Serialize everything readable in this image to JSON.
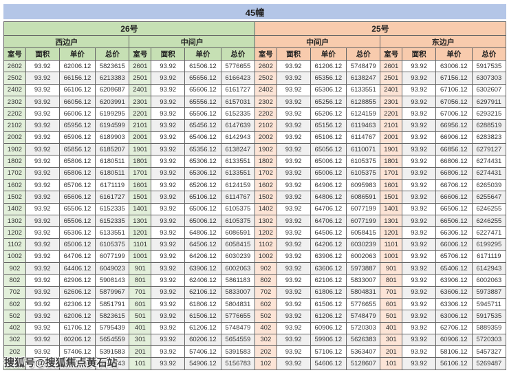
{
  "title": "45幢",
  "watermark": {
    "text": "搜狐号@搜狐焦点黄石站"
  },
  "colors": {
    "title_bar": "#b4c6e7",
    "group_26_header": "#c6e0b4",
    "group_25_header": "#f8cbad",
    "room_col_26": "#e2efda",
    "room_col_25": "#fce4d6",
    "alt_row": "#f0f0f0",
    "border": "#656565"
  },
  "table": {
    "groups": [
      {
        "label": "26号",
        "sections": [
          "西边户",
          "中间户"
        ]
      },
      {
        "label": "25号",
        "sections": [
          "中间户",
          "东边户"
        ]
      }
    ],
    "col_headers": [
      "室号",
      "面积",
      "单价",
      "总价"
    ],
    "rows": [
      [
        [
          "2602",
          "93.92",
          "62006.12",
          "5823615"
        ],
        [
          "2601",
          "93.92",
          "61506.12",
          "5776655"
        ],
        [
          "2602",
          "93.92",
          "61206.12",
          "5748479"
        ],
        [
          "2601",
          "93.92",
          "63006.12",
          "5917535"
        ]
      ],
      [
        [
          "2502",
          "93.92",
          "66156.12",
          "6213383"
        ],
        [
          "2501",
          "93.92",
          "65656.12",
          "6166423"
        ],
        [
          "2502",
          "93.92",
          "65356.12",
          "6138247"
        ],
        [
          "2501",
          "93.92",
          "67156.12",
          "6307303"
        ]
      ],
      [
        [
          "2402",
          "93.92",
          "66106.12",
          "6208687"
        ],
        [
          "2401",
          "93.92",
          "65606.12",
          "6161727"
        ],
        [
          "2402",
          "93.92",
          "65306.12",
          "6133551"
        ],
        [
          "2401",
          "93.92",
          "67106.12",
          "6302607"
        ]
      ],
      [
        [
          "2302",
          "93.92",
          "66056.12",
          "6203991"
        ],
        [
          "2301",
          "93.92",
          "65556.12",
          "6157031"
        ],
        [
          "2302",
          "93.92",
          "65256.12",
          "6128855"
        ],
        [
          "2301",
          "93.92",
          "67056.12",
          "6297911"
        ]
      ],
      [
        [
          "2202",
          "93.92",
          "66006.12",
          "6199295"
        ],
        [
          "2201",
          "93.92",
          "65506.12",
          "6152335"
        ],
        [
          "2202",
          "93.92",
          "65206.12",
          "6124159"
        ],
        [
          "2201",
          "93.92",
          "67006.12",
          "6293215"
        ]
      ],
      [
        [
          "2102",
          "93.92",
          "65956.12",
          "6194599"
        ],
        [
          "2101",
          "93.92",
          "65456.12",
          "6147639"
        ],
        [
          "2102",
          "93.92",
          "65156.12",
          "6119463"
        ],
        [
          "2101",
          "93.92",
          "66956.12",
          "6288519"
        ]
      ],
      [
        [
          "2002",
          "93.92",
          "65906.12",
          "6189903"
        ],
        [
          "2001",
          "93.92",
          "65406.12",
          "6142943"
        ],
        [
          "2002",
          "93.92",
          "65106.12",
          "6114767"
        ],
        [
          "2001",
          "93.92",
          "66906.12",
          "6283823"
        ]
      ],
      [
        [
          "1902",
          "93.92",
          "65856.12",
          "6185207"
        ],
        [
          "1901",
          "93.92",
          "65356.12",
          "6138247"
        ],
        [
          "1902",
          "93.92",
          "65056.12",
          "6110071"
        ],
        [
          "1901",
          "93.92",
          "66856.12",
          "6279127"
        ]
      ],
      [
        [
          "1802",
          "93.92",
          "65806.12",
          "6180511"
        ],
        [
          "1801",
          "93.92",
          "65306.12",
          "6133551"
        ],
        [
          "1802",
          "93.92",
          "65006.12",
          "6105375"
        ],
        [
          "1801",
          "93.92",
          "66806.12",
          "6274431"
        ]
      ],
      [
        [
          "1702",
          "93.92",
          "65806.12",
          "6180511"
        ],
        [
          "1701",
          "93.92",
          "65306.12",
          "6133551"
        ],
        [
          "1702",
          "93.92",
          "65006.12",
          "6105375"
        ],
        [
          "1701",
          "93.92",
          "66806.12",
          "6274431"
        ]
      ],
      [
        [
          "1602",
          "93.92",
          "65706.12",
          "6171119"
        ],
        [
          "1601",
          "93.92",
          "65206.12",
          "6124159"
        ],
        [
          "1602",
          "93.92",
          "64906.12",
          "6095983"
        ],
        [
          "1601",
          "93.92",
          "66706.12",
          "6265039"
        ]
      ],
      [
        [
          "1502",
          "93.92",
          "65606.12",
          "6161727"
        ],
        [
          "1501",
          "93.92",
          "65106.12",
          "6114767"
        ],
        [
          "1502",
          "93.92",
          "64806.12",
          "6086591"
        ],
        [
          "1501",
          "93.92",
          "66606.12",
          "6255647"
        ]
      ],
      [
        [
          "1402",
          "93.92",
          "65506.12",
          "6152335"
        ],
        [
          "1401",
          "93.92",
          "65006.12",
          "6105375"
        ],
        [
          "1402",
          "93.92",
          "64706.12",
          "6077199"
        ],
        [
          "1401",
          "93.92",
          "66506.12",
          "6246255"
        ]
      ],
      [
        [
          "1302",
          "93.92",
          "65506.12",
          "6152335"
        ],
        [
          "1301",
          "93.92",
          "65006.12",
          "6105375"
        ],
        [
          "1302",
          "93.92",
          "64706.12",
          "6077199"
        ],
        [
          "1301",
          "93.92",
          "66506.12",
          "6246255"
        ]
      ],
      [
        [
          "1202",
          "93.92",
          "65306.12",
          "6133551"
        ],
        [
          "1201",
          "93.92",
          "64806.12",
          "6086591"
        ],
        [
          "1202",
          "93.92",
          "64506.12",
          "6058415"
        ],
        [
          "1201",
          "93.92",
          "66306.12",
          "6227471"
        ]
      ],
      [
        [
          "1102",
          "93.92",
          "65006.12",
          "6105375"
        ],
        [
          "1101",
          "93.92",
          "64506.12",
          "6058415"
        ],
        [
          "1102",
          "93.92",
          "64206.12",
          "6030239"
        ],
        [
          "1101",
          "93.92",
          "66006.12",
          "6199295"
        ]
      ],
      [
        [
          "1002",
          "93.92",
          "64706.12",
          "6077199"
        ],
        [
          "1001",
          "93.92",
          "64206.12",
          "6030239"
        ],
        [
          "1002",
          "93.92",
          "63906.12",
          "6002063"
        ],
        [
          "1001",
          "93.92",
          "65706.12",
          "6171119"
        ]
      ],
      [
        [
          "902",
          "93.92",
          "64406.12",
          "6049023"
        ],
        [
          "901",
          "93.92",
          "63906.12",
          "6002063"
        ],
        [
          "902",
          "93.92",
          "63606.12",
          "5973887"
        ],
        [
          "901",
          "93.92",
          "65406.12",
          "6142943"
        ]
      ],
      [
        [
          "802",
          "93.92",
          "62906.12",
          "5908143"
        ],
        [
          "801",
          "93.92",
          "62406.12",
          "5861183"
        ],
        [
          "802",
          "93.92",
          "62106.12",
          "5833007"
        ],
        [
          "801",
          "93.92",
          "63906.12",
          "6002063"
        ]
      ],
      [
        [
          "702",
          "93.92",
          "62606.12",
          "5879967"
        ],
        [
          "701",
          "93.92",
          "62106.12",
          "5833007"
        ],
        [
          "702",
          "93.92",
          "61806.12",
          "5804831"
        ],
        [
          "701",
          "93.92",
          "63606.12",
          "5973887"
        ]
      ],
      [
        [
          "602",
          "93.92",
          "62306.12",
          "5851791"
        ],
        [
          "601",
          "93.92",
          "61806.12",
          "5804831"
        ],
        [
          "602",
          "93.92",
          "61506.12",
          "5776655"
        ],
        [
          "601",
          "93.92",
          "63306.12",
          "5945711"
        ]
      ],
      [
        [
          "502",
          "93.92",
          "62006.12",
          "5823615"
        ],
        [
          "501",
          "93.92",
          "61506.12",
          "5776655"
        ],
        [
          "502",
          "93.92",
          "61206.12",
          "5748479"
        ],
        [
          "501",
          "93.92",
          "63006.12",
          "5917535"
        ]
      ],
      [
        [
          "402",
          "93.92",
          "61706.12",
          "5795439"
        ],
        [
          "401",
          "93.92",
          "61206.12",
          "5748479"
        ],
        [
          "402",
          "93.92",
          "60906.12",
          "5720303"
        ],
        [
          "401",
          "93.92",
          "62706.12",
          "5889359"
        ]
      ],
      [
        [
          "302",
          "93.92",
          "60206.12",
          "5654559"
        ],
        [
          "301",
          "93.92",
          "60206.12",
          "5654559"
        ],
        [
          "302",
          "93.92",
          "59906.12",
          "5626383"
        ],
        [
          "301",
          "93.92",
          "60906.12",
          "5720303"
        ]
      ],
      [
        [
          "202",
          "93.92",
          "57406.12",
          "5391583"
        ],
        [
          "201",
          "93.92",
          "57406.12",
          "5391583"
        ],
        [
          "202",
          "93.92",
          "57106.12",
          "5363407"
        ],
        [
          "201",
          "93.92",
          "58106.12",
          "5457327"
        ]
      ],
      [
        [
          "102",
          "93.92",
          "55406.12",
          "5203743"
        ],
        [
          "101",
          "93.92",
          "54906.12",
          "5156783"
        ],
        [
          "102",
          "93.92",
          "54606.12",
          "5128607"
        ],
        [
          "101",
          "93.92",
          "56106.12",
          "5269487"
        ]
      ]
    ]
  }
}
